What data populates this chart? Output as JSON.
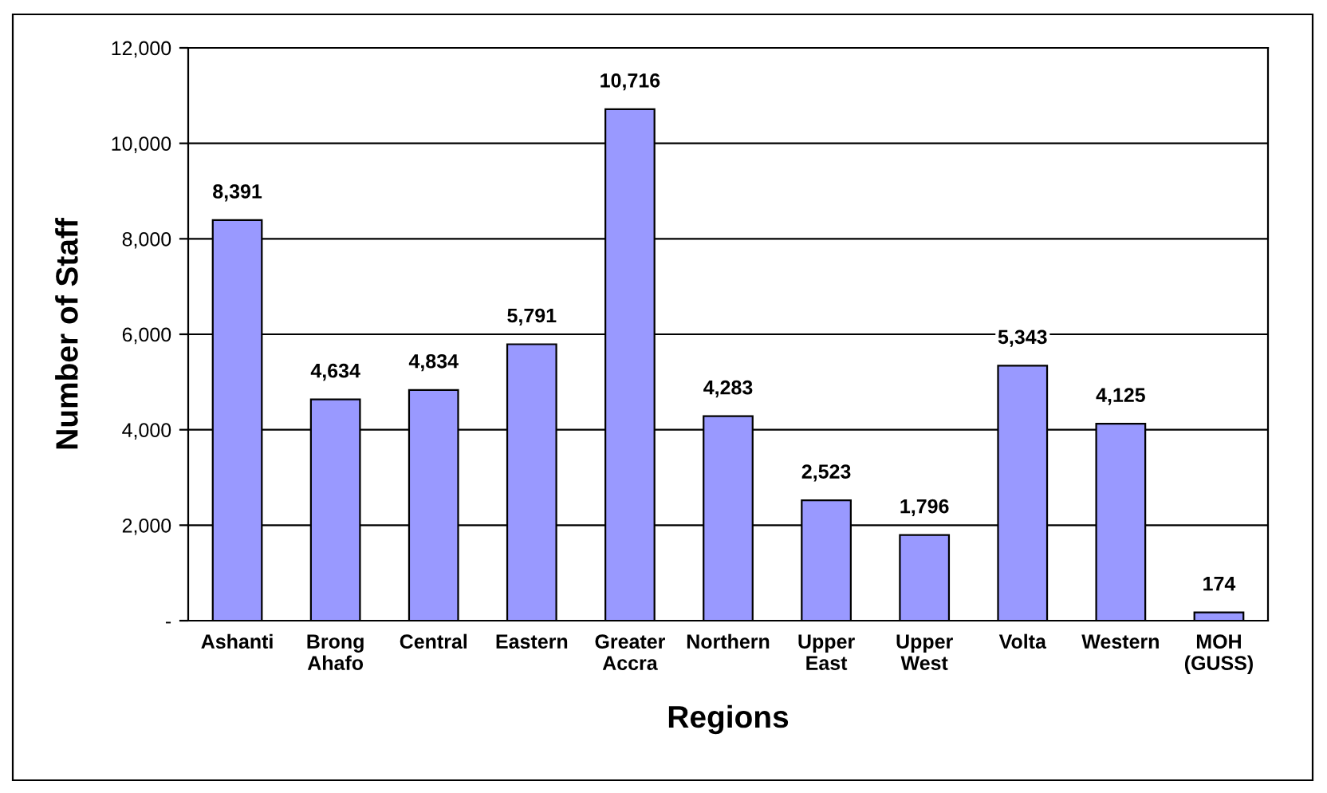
{
  "chart_data": {
    "type": "bar",
    "xlabel": "Regions",
    "ylabel": "Number of Staff",
    "categories": [
      "Ashanti",
      "Brong\nAhafo",
      "Central",
      "Eastern",
      "Greater\nAccra",
      "Northern",
      "Upper\nEast",
      "Upper\nWest",
      "Volta",
      "Western",
      "MOH\n(GUSS)"
    ],
    "values": [
      8391,
      4634,
      4834,
      5791,
      10716,
      4283,
      2523,
      1796,
      5343,
      4125,
      174
    ],
    "value_labels": [
      "8,391",
      "4,634",
      "4,834",
      "5,791",
      "10,716",
      "4,283",
      "2,523",
      "1,796",
      "5,343",
      "4,125",
      "174"
    ],
    "color": "#9999ff",
    "ylim": [
      0,
      12000
    ],
    "yticks": [
      {
        "value": 0,
        "label": "-"
      },
      {
        "value": 2000,
        "label": "2,000"
      },
      {
        "value": 4000,
        "label": "4,000"
      },
      {
        "value": 6000,
        "label": "6,000"
      },
      {
        "value": 8000,
        "label": "8,000"
      },
      {
        "value": 10000,
        "label": "10,000"
      },
      {
        "value": 12000,
        "label": "12,000"
      }
    ],
    "grid": "y"
  }
}
